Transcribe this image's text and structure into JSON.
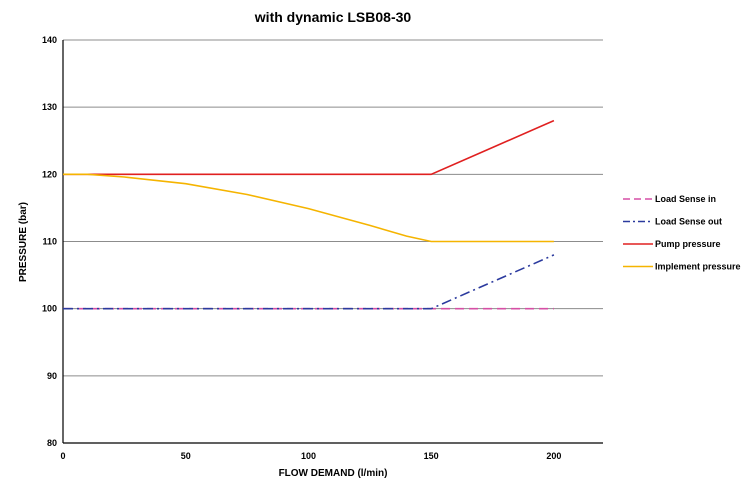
{
  "chart_data": {
    "type": "line",
    "title": "with dynamic LSB08-30",
    "xlabel": "FLOW DEMAND (l/min)",
    "ylabel": "PRESSURE (bar)",
    "xlim": [
      0,
      220
    ],
    "ylim": [
      80,
      140
    ],
    "xticks": [
      0,
      50,
      100,
      150,
      200
    ],
    "yticks": [
      80,
      90,
      100,
      110,
      120,
      130,
      140
    ],
    "grid": "horizontal",
    "legend": "right",
    "series": [
      {
        "name": "Load Sense in",
        "color": "#d64fa5",
        "dash": "dashed",
        "x": [
          0,
          150,
          200
        ],
        "y": [
          100,
          100,
          100
        ]
      },
      {
        "name": "Load Sense out",
        "color": "#2b3a9e",
        "dash": "dashdot",
        "x": [
          0,
          150,
          175,
          200
        ],
        "y": [
          100,
          100,
          104,
          108
        ]
      },
      {
        "name": "Pump pressure",
        "color": "#e02020",
        "dash": "solid",
        "x": [
          0,
          150,
          175,
          200
        ],
        "y": [
          120,
          120,
          124,
          128
        ]
      },
      {
        "name": "Implement pressure",
        "color": "#f5b400",
        "dash": "solid",
        "x": [
          0,
          10,
          25,
          50,
          75,
          100,
          125,
          140,
          150,
          200
        ],
        "y": [
          120,
          120,
          119.6,
          118.6,
          117,
          114.9,
          112.4,
          110.8,
          110,
          110
        ]
      }
    ]
  }
}
